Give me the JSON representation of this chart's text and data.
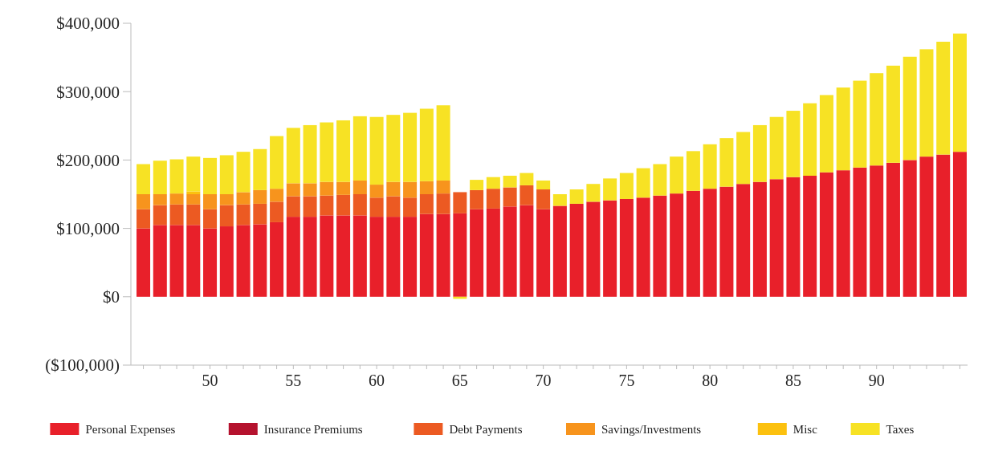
{
  "chart_data": {
    "type": "bar",
    "stacked": true,
    "categories": [
      null,
      null,
      null,
      null,
      "50",
      null,
      null,
      null,
      null,
      "55",
      null,
      null,
      null,
      null,
      "60",
      null,
      null,
      null,
      null,
      "65",
      null,
      null,
      null,
      null,
      "70",
      null,
      null,
      null,
      null,
      "75",
      null,
      null,
      null,
      null,
      "80",
      null,
      null,
      null,
      null,
      "85",
      null,
      null,
      null,
      null,
      "90",
      null,
      null,
      null,
      null,
      null
    ],
    "series": [
      {
        "name": "Personal Expenses",
        "color": "#e8202a",
        "values": [
          100000,
          105000,
          105000,
          105000,
          100000,
          103000,
          105000,
          106000,
          109000,
          117000,
          117000,
          119000,
          119000,
          119000,
          117000,
          117000,
          117000,
          121000,
          121000,
          122000,
          128000,
          129000,
          132000,
          134000,
          128000,
          133000,
          136000,
          139000,
          141000,
          143000,
          145000,
          148000,
          151000,
          155000,
          158000,
          161000,
          165000,
          168000,
          172000,
          175000,
          177000,
          182000,
          185000,
          189000,
          192000,
          196000,
          200000,
          205000,
          208000,
          212000
        ]
      },
      {
        "name": "Insurance Premiums",
        "color": "#b5122e",
        "values": [
          0,
          0,
          0,
          0,
          0,
          0,
          0,
          0,
          0,
          0,
          0,
          0,
          0,
          0,
          0,
          0,
          0,
          0,
          0,
          0,
          0,
          0,
          0,
          0,
          0,
          0,
          0,
          0,
          0,
          0,
          0,
          0,
          0,
          0,
          0,
          0,
          0,
          0,
          0,
          0,
          0,
          0,
          0,
          0,
          0,
          0,
          0,
          0,
          0,
          0
        ]
      },
      {
        "name": "Debt Payments",
        "color": "#ec5a22",
        "values": [
          28000,
          29000,
          30000,
          30000,
          28000,
          31000,
          30000,
          30000,
          30000,
          30000,
          30000,
          29000,
          30000,
          31000,
          28000,
          30000,
          28000,
          29000,
          30000,
          31000,
          28000,
          29000,
          28000,
          29000,
          29000,
          0,
          0,
          0,
          0,
          0,
          0,
          0,
          0,
          0,
          0,
          0,
          0,
          0,
          0,
          0,
          0,
          0,
          0,
          0,
          0,
          0,
          0,
          0,
          0,
          0
        ]
      },
      {
        "name": "Savings/Investments",
        "color": "#f7941d",
        "values": [
          22000,
          16000,
          16000,
          15000,
          22000,
          16000,
          18000,
          20000,
          19000,
          19000,
          19000,
          20000,
          19000,
          20000,
          19000,
          21000,
          23000,
          19000,
          19000,
          0,
          0,
          0,
          0,
          0,
          0,
          0,
          0,
          0,
          0,
          0,
          0,
          0,
          0,
          0,
          0,
          0,
          0,
          0,
          0,
          0,
          0,
          0,
          0,
          0,
          0,
          0,
          0,
          0,
          0,
          0
        ]
      },
      {
        "name": "Misc",
        "color": "#fcc10f",
        "values": [
          0,
          0,
          0,
          4000,
          0,
          0,
          0,
          0,
          0,
          0,
          0,
          0,
          0,
          0,
          0,
          0,
          0,
          0,
          0,
          0,
          0,
          0,
          0,
          0,
          0,
          0,
          0,
          0,
          0,
          0,
          0,
          0,
          0,
          0,
          0,
          0,
          0,
          0,
          0,
          0,
          0,
          0,
          0,
          0,
          0,
          0,
          0,
          0,
          0,
          0
        ]
      },
      {
        "name": "Taxes",
        "color": "#f7e224",
        "values": [
          44000,
          49000,
          50000,
          51000,
          53000,
          57000,
          59000,
          60000,
          77000,
          81000,
          85000,
          87000,
          90000,
          94000,
          99000,
          98000,
          101000,
          106000,
          110000,
          -3000,
          15000,
          17000,
          17000,
          18000,
          13000,
          17000,
          21000,
          26000,
          32000,
          38000,
          43000,
          46000,
          54000,
          58000,
          65000,
          71000,
          76000,
          83000,
          91000,
          97000,
          106000,
          113000,
          121000,
          127000,
          135000,
          142000,
          151000,
          157000,
          165000,
          173000
        ]
      }
    ],
    "ylim": [
      -100000,
      400000
    ],
    "yticks": [
      {
        "value": -100000,
        "label": "($100,000)"
      },
      {
        "value": 0,
        "label": "$0"
      },
      {
        "value": 100000,
        "label": "$100,000"
      },
      {
        "value": 200000,
        "label": "$200,000"
      },
      {
        "value": 300000,
        "label": "$300,000"
      },
      {
        "value": 400000,
        "label": "$400,000"
      }
    ],
    "legend": "bottom"
  }
}
